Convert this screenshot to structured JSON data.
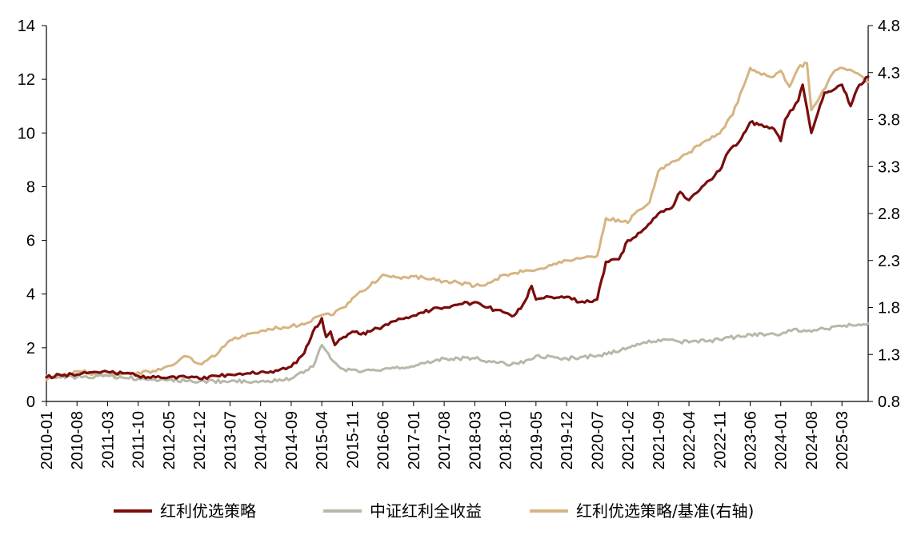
{
  "chart_data": {
    "type": "line",
    "title": "",
    "xlabel": "",
    "ylabel": "",
    "ylim": [
      0,
      14
    ],
    "y2lim": [
      0.8,
      4.8
    ],
    "y_ticks": [
      0,
      2,
      4,
      6,
      8,
      10,
      12,
      14
    ],
    "y2_ticks": [
      "0.8",
      "1.3",
      "1.8",
      "2.3",
      "2.8",
      "3.3",
      "3.8",
      "4.3",
      "4.8"
    ],
    "x_ticks": [
      "2010-01",
      "2010-08",
      "2011-03",
      "2011-10",
      "2012-05",
      "2012-12",
      "2013-07",
      "2014-02",
      "2014-09",
      "2015-04",
      "2015-11",
      "2016-06",
      "2017-01",
      "2017-08",
      "2018-03",
      "2018-10",
      "2019-05",
      "2019-12",
      "2020-07",
      "2021-02",
      "2021-09",
      "2022-04",
      "2022-11",
      "2023-06",
      "2024-01",
      "2024-08",
      "2025-03"
    ],
    "x_range": [
      "2010-01",
      "2025-09"
    ],
    "grid": false,
    "legend_position": "bottom",
    "colors": {
      "strategy": "#7a0d0d",
      "benchmark": "#b8b8a8",
      "ratio": "#d6b483"
    },
    "series": [
      {
        "name": "红利优选策略",
        "axis": "left",
        "color": "#7a0d0d",
        "x": [
          "2010-01",
          "2010-04",
          "2010-08",
          "2010-12",
          "2011-03",
          "2011-07",
          "2011-10",
          "2012-02",
          "2012-05",
          "2012-09",
          "2012-12",
          "2013-04",
          "2013-07",
          "2013-11",
          "2014-02",
          "2014-06",
          "2014-09",
          "2014-12",
          "2015-02",
          "2015-04",
          "2015-05",
          "2015-06",
          "2015-07",
          "2015-09",
          "2015-11",
          "2016-01",
          "2016-03",
          "2016-06",
          "2016-09",
          "2017-01",
          "2017-05",
          "2017-08",
          "2017-11",
          "2018-03",
          "2018-06",
          "2018-10",
          "2018-12",
          "2019-02",
          "2019-04",
          "2019-05",
          "2019-08",
          "2019-12",
          "2020-03",
          "2020-07",
          "2020-09",
          "2020-12",
          "2021-02",
          "2021-05",
          "2021-09",
          "2021-12",
          "2022-02",
          "2022-04",
          "2022-07",
          "2022-11",
          "2023-01",
          "2023-04",
          "2023-06",
          "2023-08",
          "2023-11",
          "2024-01",
          "2024-02",
          "2024-05",
          "2024-06",
          "2024-08",
          "2024-09",
          "2024-11",
          "2025-01",
          "2025-03",
          "2025-05",
          "2025-07",
          "2025-09"
        ],
        "values": [
          0.9,
          1.0,
          1.0,
          1.1,
          1.1,
          1.05,
          0.95,
          0.9,
          0.9,
          0.9,
          0.85,
          0.95,
          1.0,
          1.05,
          1.1,
          1.15,
          1.3,
          1.8,
          2.6,
          3.1,
          2.4,
          2.6,
          2.1,
          2.4,
          2.6,
          2.5,
          2.6,
          2.8,
          3.0,
          3.2,
          3.4,
          3.5,
          3.6,
          3.7,
          3.5,
          3.3,
          3.2,
          3.6,
          4.3,
          3.8,
          3.9,
          3.9,
          3.7,
          3.8,
          5.2,
          5.3,
          6.0,
          6.3,
          7.0,
          7.2,
          7.8,
          7.5,
          8.0,
          8.6,
          9.3,
          9.8,
          10.4,
          10.3,
          10.2,
          9.7,
          10.5,
          11.2,
          11.8,
          10.0,
          10.5,
          11.5,
          11.6,
          11.8,
          11.0,
          11.8,
          12.1
        ]
      },
      {
        "name": "中证红利全收益",
        "axis": "left",
        "color": "#b8b8a8",
        "x": [
          "2010-01",
          "2010-08",
          "2011-03",
          "2011-10",
          "2012-05",
          "2012-12",
          "2013-07",
          "2014-02",
          "2014-09",
          "2015-02",
          "2015-04",
          "2015-06",
          "2015-09",
          "2016-01",
          "2016-06",
          "2017-01",
          "2017-08",
          "2018-03",
          "2018-10",
          "2019-01",
          "2019-05",
          "2019-12",
          "2020-07",
          "2021-02",
          "2021-09",
          "2022-04",
          "2022-11",
          "2023-06",
          "2024-01",
          "2024-04",
          "2024-08",
          "2024-11",
          "2025-03",
          "2025-09"
        ],
        "values": [
          0.95,
          0.9,
          0.95,
          0.85,
          0.8,
          0.75,
          0.75,
          0.75,
          0.85,
          1.3,
          2.1,
          1.6,
          1.2,
          1.1,
          1.2,
          1.3,
          1.6,
          1.6,
          1.4,
          1.4,
          1.7,
          1.6,
          1.7,
          2.0,
          2.3,
          2.2,
          2.3,
          2.5,
          2.5,
          2.7,
          2.6,
          2.7,
          2.8,
          2.9
        ]
      },
      {
        "name": "红利优选策略/基准(右轴)",
        "axis": "right",
        "color": "#d6b483",
        "x": [
          "2010-01",
          "2010-04",
          "2010-08",
          "2010-12",
          "2011-03",
          "2011-07",
          "2011-10",
          "2012-02",
          "2012-05",
          "2012-09",
          "2012-12",
          "2013-04",
          "2013-07",
          "2013-11",
          "2014-02",
          "2014-06",
          "2014-09",
          "2014-12",
          "2015-02",
          "2015-04",
          "2015-06",
          "2015-09",
          "2015-11",
          "2016-03",
          "2016-06",
          "2016-09",
          "2017-01",
          "2017-05",
          "2017-08",
          "2017-11",
          "2018-03",
          "2018-06",
          "2018-10",
          "2019-02",
          "2019-05",
          "2019-08",
          "2019-12",
          "2020-03",
          "2020-07",
          "2020-09",
          "2021-02",
          "2021-04",
          "2021-07",
          "2021-09",
          "2021-12",
          "2022-04",
          "2022-07",
          "2022-11",
          "2023-02",
          "2023-06",
          "2023-08",
          "2023-11",
          "2024-01",
          "2024-03",
          "2024-05",
          "2024-07",
          "2024-08",
          "2024-10",
          "2025-01",
          "2025-03",
          "2025-06",
          "2025-09"
        ],
        "values": [
          1.03,
          1.07,
          1.12,
          1.1,
          1.08,
          1.1,
          1.11,
          1.12,
          1.18,
          1.28,
          1.2,
          1.3,
          1.45,
          1.52,
          1.55,
          1.58,
          1.6,
          1.62,
          1.68,
          1.72,
          1.72,
          1.8,
          1.9,
          2.03,
          2.15,
          2.12,
          2.13,
          2.1,
          2.08,
          2.07,
          2.03,
          2.06,
          2.15,
          2.18,
          2.2,
          2.25,
          2.3,
          2.32,
          2.35,
          2.75,
          2.7,
          2.82,
          2.92,
          3.25,
          3.35,
          3.45,
          3.55,
          3.65,
          3.85,
          4.35,
          4.3,
          4.25,
          4.32,
          4.15,
          4.35,
          4.4,
          3.9,
          4.05,
          4.3,
          4.35,
          4.3,
          4.2
        ]
      }
    ]
  }
}
